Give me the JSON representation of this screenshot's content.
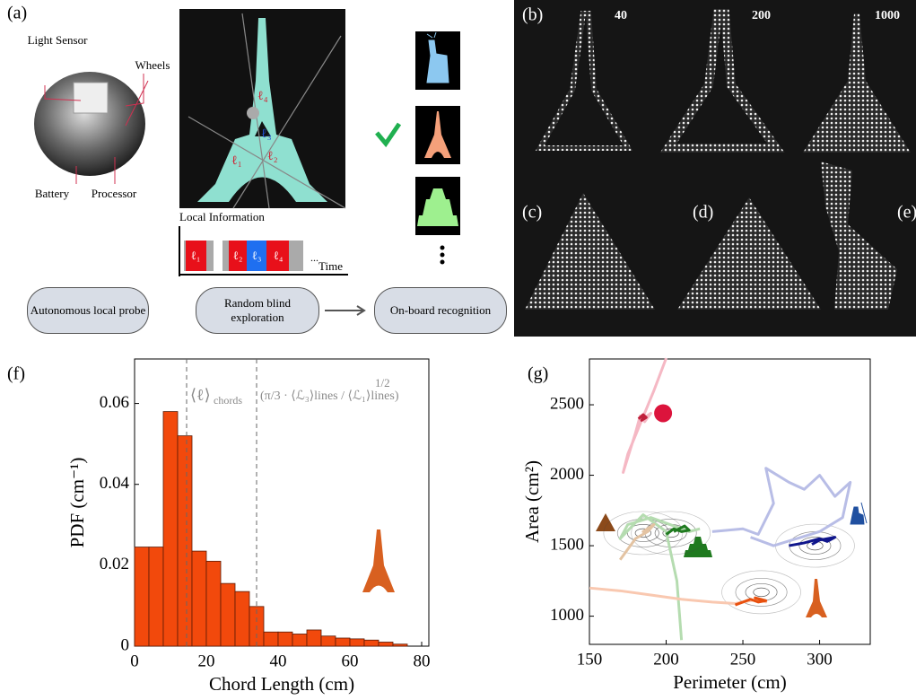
{
  "panel_a": {
    "label": "(a)",
    "light_sensor": "Light Sensor",
    "wheels": "Wheels",
    "battery": "Battery",
    "processor": "Processor",
    "local_information": "Local Information",
    "time": "Time",
    "ellipsis": "...",
    "chords": [
      "ℓ₁",
      "ℓ₂",
      "ℓ₃",
      "ℓ₄"
    ],
    "boxes": [
      "Autonomous local probe",
      "Random blind exploration",
      "On-board recognition"
    ]
  },
  "panels_be": {
    "labels": [
      "(b)",
      "(c)",
      "(d)",
      "(e)"
    ],
    "steps": [
      "40",
      "200",
      "1000"
    ]
  },
  "chart_data": [
    {
      "type": "histogram",
      "title": "(f)",
      "x_label": "Chord Length (cm)",
      "y_label": "PDF (cm⁻¹)",
      "bins": [
        0,
        4,
        8,
        12,
        16,
        20,
        24,
        28,
        32,
        36,
        40,
        44,
        48,
        52,
        56,
        60,
        64,
        68,
        72,
        76
      ],
      "values": [
        0.0245,
        0.0245,
        0.058,
        0.052,
        0.0235,
        0.021,
        0.0155,
        0.0135,
        0.0098,
        0.0035,
        0.0035,
        0.003,
        0.004,
        0.0025,
        0.002,
        0.0018,
        0.0015,
        0.001,
        0.0005
      ],
      "color": "#f2490c",
      "xlim": [
        0,
        82
      ],
      "ylim": [
        0,
        0.071
      ],
      "xticks": [
        0,
        20,
        40,
        60,
        80
      ],
      "yticks": [
        0,
        0.02,
        0.04,
        0.06
      ],
      "markers": [
        14.5,
        34
      ],
      "annotations": [
        "⟨ℓ⟩",
        "chords",
        "(π/3 · ⟨ℒ₃⟩lines / ⟨ℒ₁⟩lines)",
        "1/2"
      ]
    },
    {
      "type": "line",
      "title": "(g)",
      "x_label": "Perimeter (cm)",
      "y_label": "Area (cm²)",
      "xlim": [
        150,
        333
      ],
      "ylim": [
        800,
        2825
      ],
      "xticks": [
        150,
        200,
        250,
        300
      ],
      "yticks": [
        1000,
        1500,
        2000,
        2500
      ],
      "series": [
        {
          "color": "#f5b8c4",
          "x": [
            200,
            192,
            175,
            172,
            180,
            183,
            186,
            190,
            185
          ],
          "y": [
            2830,
            2600,
            2150,
            2020,
            2300,
            2420,
            2380,
            2440,
            2400
          ]
        },
        {
          "color": "#c0203c",
          "x": [
            182,
            185,
            187,
            184,
            186
          ],
          "y": [
            2400,
            2430,
            2410,
            2390,
            2420
          ]
        },
        {
          "color": "#b5dcb0",
          "x": [
            210,
            207,
            200,
            185,
            170,
            175,
            190,
            205,
            215,
            222
          ],
          "y": [
            830,
            1250,
            1600,
            1720,
            1550,
            1650,
            1700,
            1640,
            1600,
            1620
          ]
        },
        {
          "color": "#1f7a1f",
          "x": [
            200,
            205,
            210,
            215,
            212,
            205
          ],
          "y": [
            1580,
            1620,
            1600,
            1610,
            1640,
            1600
          ]
        },
        {
          "color": "#e3c3a2",
          "x": [
            170,
            180,
            188,
            192,
            185,
            190
          ],
          "y": [
            1400,
            1550,
            1600,
            1650,
            1600,
            1630
          ]
        },
        {
          "color": "#f9c8b0",
          "x": [
            150,
            170,
            190,
            210,
            230,
            245,
            255,
            262,
            265,
            258
          ],
          "y": [
            1200,
            1180,
            1150,
            1120,
            1100,
            1090,
            1110,
            1120,
            1100,
            1130
          ]
        },
        {
          "color": "#e8500e",
          "x": [
            245,
            255,
            260,
            265,
            258,
            262
          ],
          "y": [
            1080,
            1120,
            1100,
            1110,
            1130,
            1115
          ]
        },
        {
          "color": "#b8bde6",
          "x": [
            230,
            250,
            260,
            270,
            265,
            280,
            290,
            300,
            310,
            320,
            315,
            300,
            285,
            270,
            255
          ],
          "y": [
            1600,
            1620,
            1580,
            1800,
            2050,
            1950,
            1900,
            2000,
            1850,
            1950,
            1700,
            1600,
            1550,
            1500,
            1560
          ]
        },
        {
          "color": "#10168c",
          "x": [
            280,
            290,
            300,
            305,
            310,
            300,
            295
          ],
          "y": [
            1500,
            1520,
            1550,
            1530,
            1560,
            1540,
            1510
          ]
        }
      ],
      "points": [
        {
          "x": 198,
          "y": 2440,
          "color": "#dc143c"
        }
      ],
      "contour_centers": [
        {
          "x": 185,
          "y": 1590
        },
        {
          "x": 203,
          "y": 1590
        },
        {
          "x": 262,
          "y": 1170
        },
        {
          "x": 297,
          "y": 1500
        }
      ]
    }
  ]
}
